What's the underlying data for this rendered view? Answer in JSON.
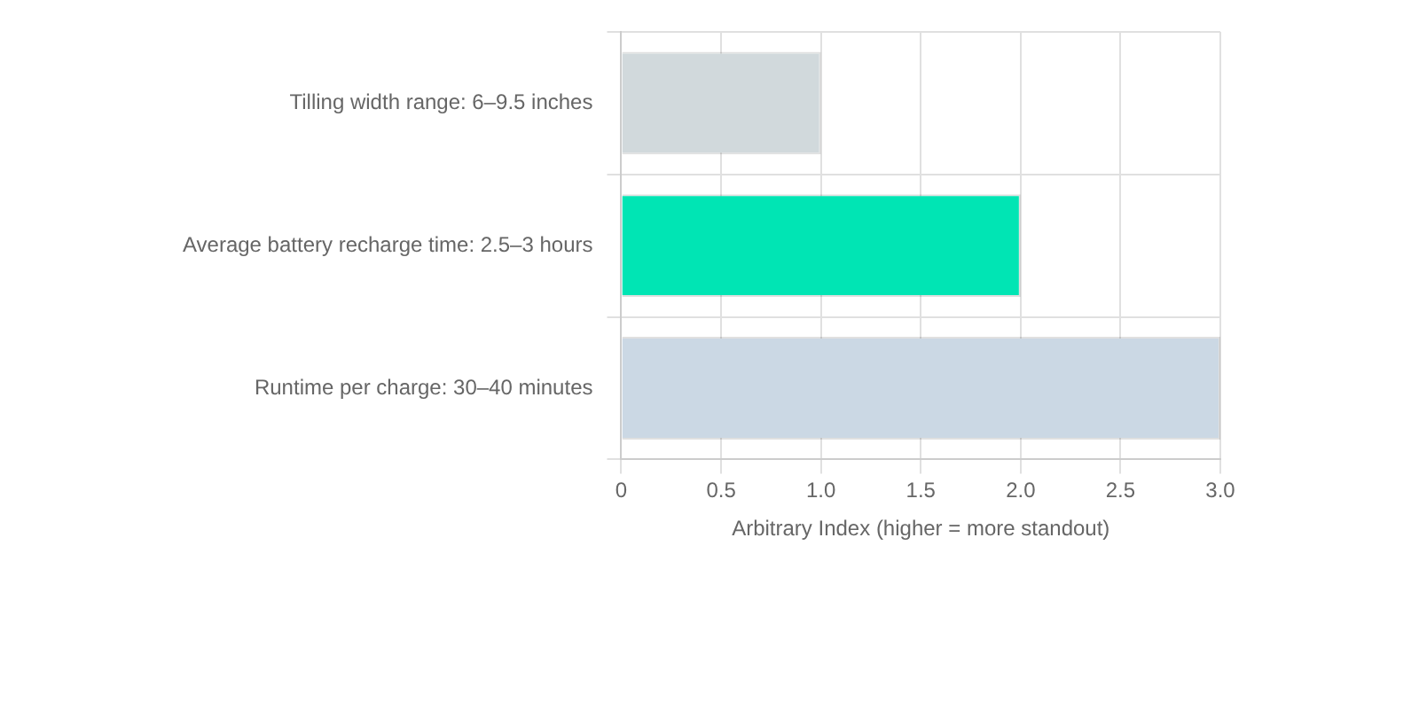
{
  "chart_data": {
    "type": "bar",
    "orientation": "horizontal",
    "xlabel": "Arbitrary Index (higher = more standout)",
    "categories": [
      "Tilling width range: 6–9.5 inches",
      "Average battery recharge time: 2.5–3 hours",
      "Runtime per charge: 30–40 minutes"
    ],
    "values": [
      1,
      2,
      3
    ],
    "colors": [
      "#d1d9dc",
      "#00e5b4",
      "#cbd8e4"
    ],
    "xlim": [
      0,
      3
    ],
    "xticks": [
      0,
      0.5,
      {
        "value": 1,
        "label": "1.0"
      },
      1.5,
      {
        "value": 2,
        "label": "2.0"
      },
      2.5,
      {
        "value": 3,
        "label": "3.0"
      }
    ],
    "grid": true,
    "legend": false
  }
}
